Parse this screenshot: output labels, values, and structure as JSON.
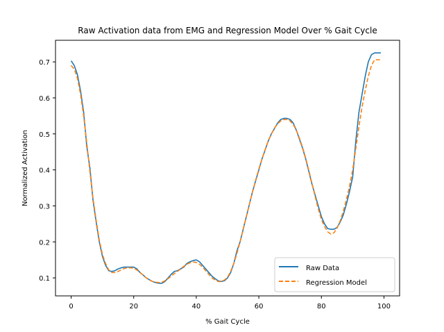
{
  "chart_data": {
    "type": "line",
    "title": "Raw Activation data from EMG and Regression Model Over % Gait Cycle",
    "xlabel": "% Gait Cycle",
    "ylabel": "Normalized Activation",
    "xlim": [
      -5,
      105
    ],
    "ylim": [
      0.05,
      0.76
    ],
    "xticks": [
      0,
      20,
      40,
      60,
      80,
      100
    ],
    "yticks": [
      0.1,
      0.2,
      0.3,
      0.4,
      0.5,
      0.6,
      0.7
    ],
    "grid": false,
    "legend_position": "lower right",
    "series": [
      {
        "name": "Raw Data",
        "color": "#1f77b4",
        "style": "solid",
        "x": [
          0,
          1,
          2,
          3,
          4,
          5,
          6,
          7,
          8,
          9,
          10,
          11,
          12,
          13,
          14,
          15,
          16,
          17,
          18,
          19,
          20,
          21,
          22,
          23,
          24,
          25,
          26,
          27,
          28,
          29,
          30,
          31,
          32,
          33,
          34,
          35,
          36,
          37,
          38,
          39,
          40,
          41,
          42,
          43,
          44,
          45,
          46,
          47,
          48,
          49,
          50,
          51,
          52,
          53,
          54,
          55,
          56,
          57,
          58,
          59,
          60,
          61,
          62,
          63,
          64,
          65,
          66,
          67,
          68,
          69,
          70,
          71,
          72,
          73,
          74,
          75,
          76,
          77,
          78,
          79,
          80,
          81,
          82,
          83,
          84,
          85,
          86,
          87,
          88,
          89,
          90,
          91,
          92,
          93,
          94,
          95,
          96,
          97,
          98,
          99
        ],
        "y": [
          0.703,
          0.69,
          0.665,
          0.62,
          0.56,
          0.465,
          0.405,
          0.315,
          0.255,
          0.2,
          0.16,
          0.135,
          0.12,
          0.118,
          0.12,
          0.125,
          0.128,
          0.13,
          0.13,
          0.13,
          0.13,
          0.125,
          0.115,
          0.108,
          0.1,
          0.095,
          0.09,
          0.087,
          0.085,
          0.085,
          0.09,
          0.1,
          0.11,
          0.118,
          0.12,
          0.125,
          0.13,
          0.14,
          0.145,
          0.148,
          0.15,
          0.145,
          0.135,
          0.125,
          0.115,
          0.105,
          0.098,
          0.092,
          0.09,
          0.092,
          0.1,
          0.115,
          0.14,
          0.175,
          0.2,
          0.235,
          0.27,
          0.305,
          0.34,
          0.37,
          0.4,
          0.43,
          0.455,
          0.48,
          0.5,
          0.515,
          0.53,
          0.54,
          0.543,
          0.543,
          0.54,
          0.53,
          0.51,
          0.485,
          0.46,
          0.43,
          0.395,
          0.36,
          0.33,
          0.3,
          0.27,
          0.25,
          0.237,
          0.235,
          0.235,
          0.24,
          0.255,
          0.275,
          0.305,
          0.34,
          0.38,
          0.48,
          0.56,
          0.61,
          0.66,
          0.7,
          0.72,
          0.725,
          0.725,
          0.725
        ]
      },
      {
        "name": "Regression Model",
        "color": "#ff7f0e",
        "style": "dashed",
        "x": [
          0,
          1,
          2,
          3,
          4,
          5,
          6,
          7,
          8,
          9,
          10,
          11,
          12,
          13,
          14,
          15,
          16,
          17,
          18,
          19,
          20,
          21,
          22,
          23,
          24,
          25,
          26,
          27,
          28,
          29,
          30,
          31,
          32,
          33,
          34,
          35,
          36,
          37,
          38,
          39,
          40,
          41,
          42,
          43,
          44,
          45,
          46,
          47,
          48,
          49,
          50,
          51,
          52,
          53,
          54,
          55,
          56,
          57,
          58,
          59,
          60,
          61,
          62,
          63,
          64,
          65,
          66,
          67,
          68,
          69,
          70,
          71,
          72,
          73,
          74,
          75,
          76,
          77,
          78,
          79,
          80,
          81,
          82,
          83,
          84,
          85,
          86,
          87,
          88,
          89,
          90,
          91,
          92,
          93,
          94,
          95,
          96,
          97,
          98,
          99
        ],
        "y": [
          0.69,
          0.68,
          0.655,
          0.61,
          0.55,
          0.475,
          0.395,
          0.32,
          0.26,
          0.205,
          0.165,
          0.14,
          0.122,
          0.115,
          0.115,
          0.118,
          0.122,
          0.126,
          0.128,
          0.128,
          0.127,
          0.122,
          0.115,
          0.108,
          0.1,
          0.094,
          0.09,
          0.088,
          0.087,
          0.088,
          0.092,
          0.098,
          0.105,
          0.112,
          0.118,
          0.125,
          0.132,
          0.138,
          0.142,
          0.144,
          0.143,
          0.138,
          0.13,
          0.12,
          0.11,
          0.1,
          0.094,
          0.09,
          0.09,
          0.094,
          0.102,
          0.118,
          0.14,
          0.168,
          0.2,
          0.235,
          0.27,
          0.305,
          0.34,
          0.372,
          0.402,
          0.43,
          0.456,
          0.48,
          0.5,
          0.516,
          0.528,
          0.536,
          0.54,
          0.54,
          0.536,
          0.526,
          0.51,
          0.488,
          0.462,
          0.432,
          0.398,
          0.362,
          0.326,
          0.292,
          0.262,
          0.243,
          0.228,
          0.222,
          0.225,
          0.238,
          0.258,
          0.285,
          0.318,
          0.355,
          0.4,
          0.46,
          0.52,
          0.575,
          0.62,
          0.66,
          0.69,
          0.706,
          0.706,
          0.706
        ]
      }
    ]
  }
}
